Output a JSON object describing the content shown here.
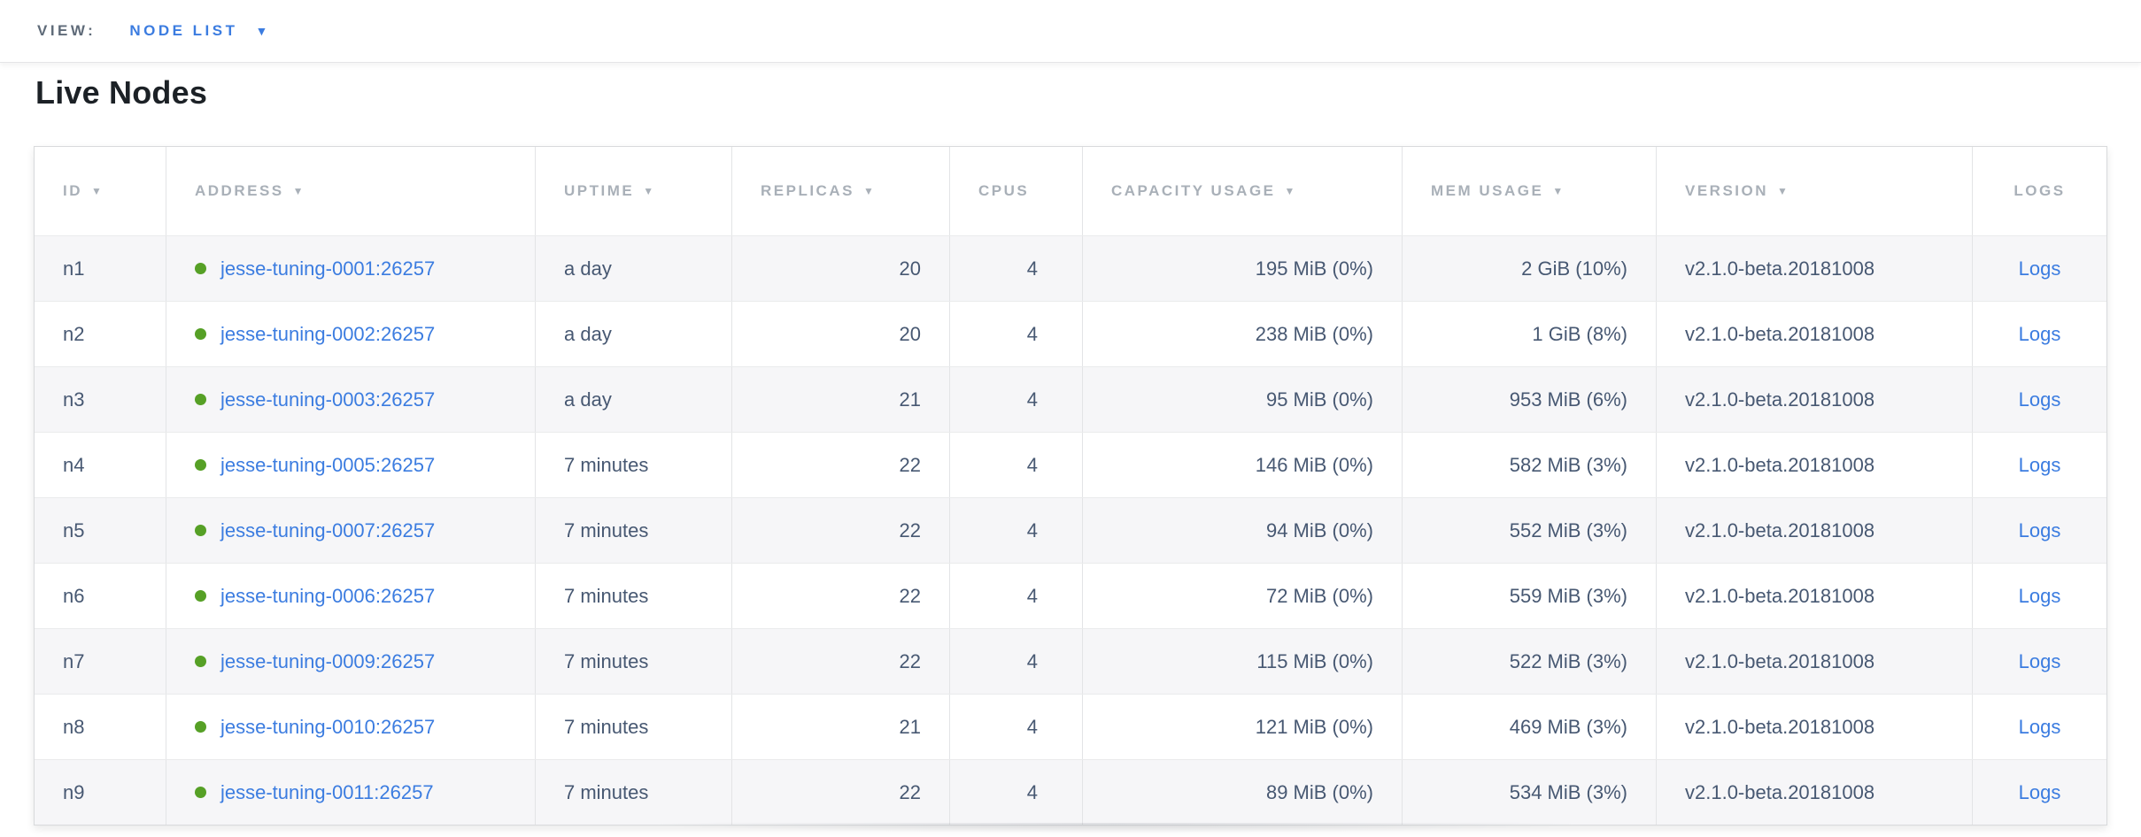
{
  "topbar": {
    "view_label": "VIEW:",
    "view_value": "NODE LIST",
    "caret_icon": "triangle-down"
  },
  "page": {
    "title": "Live Nodes"
  },
  "colors": {
    "link_blue": "#3b7ce0",
    "header_gray": "#a9b0b8",
    "cell_text": "#475872",
    "healthy_green": "#56a026",
    "row_stripe": "#f6f6f8"
  },
  "table": {
    "columns": [
      {
        "key": "id",
        "label": "ID",
        "sortable": true
      },
      {
        "key": "address",
        "label": "ADDRESS",
        "sortable": true
      },
      {
        "key": "uptime",
        "label": "UPTIME",
        "sortable": true
      },
      {
        "key": "replicas",
        "label": "REPLICAS",
        "sortable": true
      },
      {
        "key": "cpus",
        "label": "CPUS",
        "sortable": false
      },
      {
        "key": "capacity",
        "label": "CAPACITY USAGE",
        "sortable": true
      },
      {
        "key": "mem",
        "label": "MEM USAGE",
        "sortable": true
      },
      {
        "key": "version",
        "label": "VERSION",
        "sortable": true
      },
      {
        "key": "logs",
        "label": "LOGS",
        "sortable": false
      }
    ],
    "rows": [
      {
        "id": "n1",
        "status": "healthy",
        "address": "jesse-tuning-0001:26257",
        "uptime": "a day",
        "replicas": "20",
        "cpus": "4",
        "capacity": "195 MiB (0%)",
        "mem": "2 GiB (10%)",
        "version": "v2.1.0-beta.20181008",
        "logs": "Logs"
      },
      {
        "id": "n2",
        "status": "healthy",
        "address": "jesse-tuning-0002:26257",
        "uptime": "a day",
        "replicas": "20",
        "cpus": "4",
        "capacity": "238 MiB (0%)",
        "mem": "1 GiB (8%)",
        "version": "v2.1.0-beta.20181008",
        "logs": "Logs"
      },
      {
        "id": "n3",
        "status": "healthy",
        "address": "jesse-tuning-0003:26257",
        "uptime": "a day",
        "replicas": "21",
        "cpus": "4",
        "capacity": "95 MiB (0%)",
        "mem": "953 MiB (6%)",
        "version": "v2.1.0-beta.20181008",
        "logs": "Logs"
      },
      {
        "id": "n4",
        "status": "healthy",
        "address": "jesse-tuning-0005:26257",
        "uptime": "7 minutes",
        "replicas": "22",
        "cpus": "4",
        "capacity": "146 MiB (0%)",
        "mem": "582 MiB (3%)",
        "version": "v2.1.0-beta.20181008",
        "logs": "Logs"
      },
      {
        "id": "n5",
        "status": "healthy",
        "address": "jesse-tuning-0007:26257",
        "uptime": "7 minutes",
        "replicas": "22",
        "cpus": "4",
        "capacity": "94 MiB (0%)",
        "mem": "552 MiB (3%)",
        "version": "v2.1.0-beta.20181008",
        "logs": "Logs"
      },
      {
        "id": "n6",
        "status": "healthy",
        "address": "jesse-tuning-0006:26257",
        "uptime": "7 minutes",
        "replicas": "22",
        "cpus": "4",
        "capacity": "72 MiB (0%)",
        "mem": "559 MiB (3%)",
        "version": "v2.1.0-beta.20181008",
        "logs": "Logs"
      },
      {
        "id": "n7",
        "status": "healthy",
        "address": "jesse-tuning-0009:26257",
        "uptime": "7 minutes",
        "replicas": "22",
        "cpus": "4",
        "capacity": "115 MiB (0%)",
        "mem": "522 MiB (3%)",
        "version": "v2.1.0-beta.20181008",
        "logs": "Logs"
      },
      {
        "id": "n8",
        "status": "healthy",
        "address": "jesse-tuning-0010:26257",
        "uptime": "7 minutes",
        "replicas": "21",
        "cpus": "4",
        "capacity": "121 MiB (0%)",
        "mem": "469 MiB (3%)",
        "version": "v2.1.0-beta.20181008",
        "logs": "Logs"
      },
      {
        "id": "n9",
        "status": "healthy",
        "address": "jesse-tuning-0011:26257",
        "uptime": "7 minutes",
        "replicas": "22",
        "cpus": "4",
        "capacity": "89 MiB (0%)",
        "mem": "534 MiB (3%)",
        "version": "v2.1.0-beta.20181008",
        "logs": "Logs"
      }
    ]
  }
}
